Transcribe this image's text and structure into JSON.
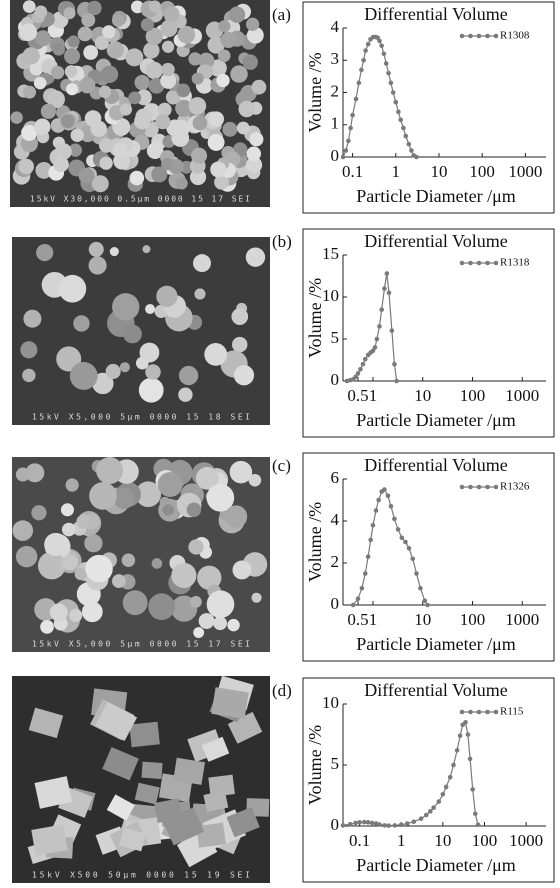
{
  "panels": [
    {
      "label": "(a)",
      "micrograph_text": "15kV X30,000 0.5μm 0000 15 17 SEI"
    },
    {
      "label": "(b)",
      "micrograph_text": "15kV X5,000 5μm 0000 15 18 SEI"
    },
    {
      "label": "(c)",
      "micrograph_text": "15kV X5,000 5μm 0000 15 17 SEI"
    },
    {
      "label": "(d)",
      "micrograph_text": "15kV X500 50μm 0000 15 19 SEI"
    }
  ],
  "chart_data": [
    {
      "type": "line",
      "title": "Differential Volume",
      "x_label": "Particle Diameter /μm",
      "y_label": "Volume /%",
      "xscale": "log",
      "legend": "upper right",
      "grid": false,
      "xlim": [
        0.06,
        3000
      ],
      "xticks": [
        0.1,
        1,
        10,
        100,
        1000
      ],
      "ylim": [
        0,
        4
      ],
      "yticks": [
        0,
        1,
        2,
        3,
        4
      ],
      "x": [
        0.06,
        0.07,
        0.08,
        0.09,
        0.1,
        0.12,
        0.14,
        0.16,
        0.18,
        0.2,
        0.23,
        0.26,
        0.3,
        0.34,
        0.38,
        0.42,
        0.47,
        0.53,
        0.6,
        0.68,
        0.77,
        0.87,
        1,
        1.15,
        1.3,
        1.5,
        1.7,
        2,
        2.3,
        2.6,
        3
      ],
      "series": [
        {
          "name": "R1308",
          "color": "#7a7a7a",
          "values": [
            0,
            0.2,
            0.5,
            0.9,
            1.3,
            1.8,
            2.3,
            2.7,
            3.0,
            3.3,
            3.5,
            3.65,
            3.72,
            3.72,
            3.7,
            3.6,
            3.45,
            3.2,
            2.9,
            2.6,
            2.3,
            2.0,
            1.7,
            1.4,
            1.15,
            0.9,
            0.65,
            0.4,
            0.2,
            0.05,
            0
          ]
        }
      ]
    },
    {
      "type": "line",
      "title": "Differential Volume",
      "x_label": "Particle Diameter /μm",
      "y_label": "Volume /%",
      "xscale": "log",
      "legend": "upper right",
      "grid": false,
      "xlim": [
        0.25,
        3000
      ],
      "xticks": [
        0.5,
        1,
        10,
        100,
        1000
      ],
      "ylim": [
        0,
        15
      ],
      "yticks": [
        0,
        5,
        10,
        15
      ],
      "x": [
        0.3,
        0.35,
        0.4,
        0.45,
        0.5,
        0.56,
        0.63,
        0.7,
        0.8,
        0.9,
        1,
        1.1,
        1.2,
        1.35,
        1.5,
        1.7,
        1.9,
        2.1,
        2.4,
        2.7,
        3
      ],
      "series": [
        {
          "name": "R1318",
          "color": "#7a7a7a",
          "values": [
            0,
            0.1,
            0.2,
            0.5,
            0.9,
            1.4,
            2.0,
            2.6,
            3.1,
            3.4,
            3.6,
            4.0,
            5.0,
            6.5,
            8.5,
            11,
            12.8,
            10.5,
            6,
            2,
            0
          ]
        }
      ]
    },
    {
      "type": "line",
      "title": "Differential Volume",
      "x_label": "Particle Diameter /μm",
      "y_label": "Volume /%",
      "xscale": "log",
      "legend": "upper right",
      "grid": false,
      "xlim": [
        0.25,
        3000
      ],
      "xticks": [
        0.5,
        1,
        10,
        100,
        1000
      ],
      "ylim": [
        0,
        6
      ],
      "yticks": [
        0,
        2,
        4,
        6
      ],
      "x": [
        0.4,
        0.5,
        0.6,
        0.7,
        0.8,
        0.9,
        1,
        1.15,
        1.3,
        1.5,
        1.7,
        2,
        2.3,
        2.7,
        3.2,
        3.8,
        4.5,
        5.3,
        6.3,
        7.5,
        9,
        11,
        12.5
      ],
      "series": [
        {
          "name": "R1326",
          "color": "#7a7a7a",
          "values": [
            0,
            0.3,
            0.8,
            1.5,
            2.3,
            3.1,
            3.8,
            4.5,
            5.0,
            5.4,
            5.5,
            5.2,
            4.7,
            4.1,
            3.6,
            3.2,
            3.0,
            2.7,
            2.2,
            1.5,
            0.8,
            0.2,
            0
          ]
        }
      ]
    },
    {
      "type": "line",
      "title": "Differential Volume",
      "x_label": "Particle Diameter /μm",
      "y_label": "Volume /%",
      "xscale": "log",
      "legend": "upper right",
      "grid": false,
      "xlim": [
        0.04,
        3000
      ],
      "xticks": [
        0.1,
        1,
        10,
        100,
        1000
      ],
      "ylim": [
        0,
        10
      ],
      "yticks": [
        0,
        5,
        10
      ],
      "x": [
        0.04,
        0.06,
        0.08,
        0.1,
        0.13,
        0.16,
        0.2,
        0.25,
        0.3,
        0.4,
        0.5,
        0.7,
        1,
        1.4,
        2,
        3,
        4,
        5,
        6,
        8,
        10,
        12,
        15,
        18,
        22,
        26,
        30,
        35,
        40,
        45,
        52,
        60,
        70
      ],
      "series": [
        {
          "name": "R115",
          "color": "#7a7a7a",
          "values": [
            0.05,
            0.15,
            0.25,
            0.3,
            0.32,
            0.3,
            0.25,
            0.2,
            0.12,
            0.05,
            0.03,
            0.05,
            0.1,
            0.2,
            0.35,
            0.6,
            0.9,
            1.2,
            1.5,
            2.0,
            2.6,
            3.2,
            4.0,
            5.0,
            6.2,
            7.4,
            8.3,
            8.5,
            7.5,
            5.5,
            3,
            1,
            0.1
          ]
        }
      ]
    }
  ]
}
